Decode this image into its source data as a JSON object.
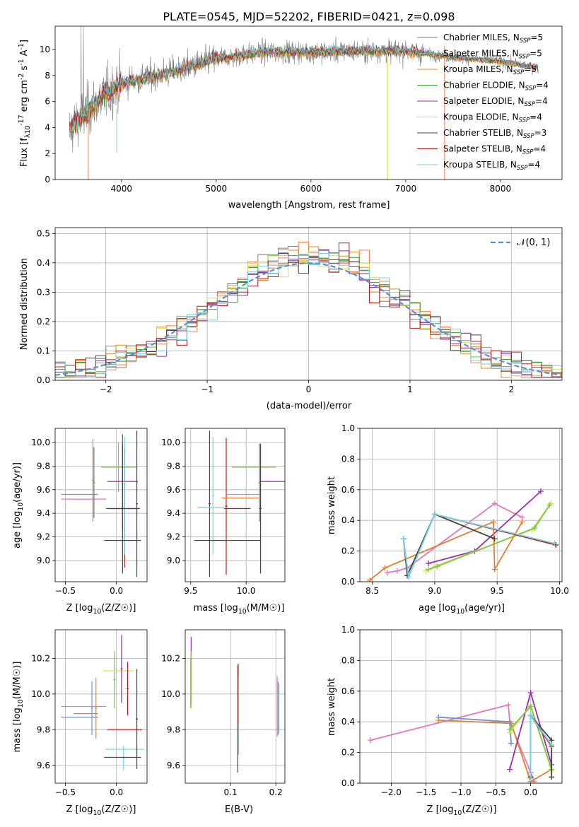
{
  "figure": {
    "title": "PLATE=0545, MJD=52202, FIBERID=0421, z=0.098"
  },
  "colors": {
    "Chabrier MILES": "#7f7f7f",
    "Salpeter MILES": "#ff7f50",
    "Kroupa MILES": "#d98c1a",
    "Chabrier ELODIE": "#2ca02c",
    "Salpeter ELODIE": "#9b2fae",
    "Kroupa ELODIE": "#d4e157",
    "Chabrier STELIB": "#444444",
    "Salpeter STELIB": "#b71c1c",
    "Kroupa STELIB": "#74d2e0",
    "spectrum": "#808080",
    "gaussian": "#5b8dd9",
    "extra_pink": "#e377c2",
    "extra_orange": "#e08030",
    "extra_blue": "#6f8fd8",
    "extra_green": "#7ac943"
  },
  "chart_data": [
    {
      "id": "spectrum",
      "type": "line",
      "title": "PLATE=0545, MJD=52202, FIBERID=0421, z=0.098",
      "xlabel": "wavelength [Angstrom, rest frame]",
      "ylabel": "Flux [f_λ 10^-17 erg cm^-2 s^-1 A^-1]",
      "xlim": [
        3300,
        8650
      ],
      "ylim": [
        0,
        11.8
      ],
      "xticks": [
        4000,
        5000,
        6000,
        7000,
        8000
      ],
      "yticks": [
        0,
        2,
        4,
        6,
        8,
        10
      ],
      "grid": false,
      "legend_position": "right",
      "legend": [
        "Chabrier MILES, N_SSP=5",
        "Salpeter MILES, N_SSP=5",
        "Kroupa MILES, N_SSP=5",
        "Chabrier ELODIE, N_SSP=4",
        "Salpeter ELODIE, N_SSP=4",
        "Kroupa ELODIE, N_SSP=4",
        "Chabrier STELIB, N_SSP=3",
        "Salpeter STELIB, N_SSP=4",
        "Kroupa STELIB, N_SSP=4"
      ],
      "continuum_approx": {
        "x": [
          3450,
          3600,
          3800,
          4000,
          4300,
          4600,
          5000,
          5500,
          6000,
          6500,
          7000,
          7500,
          8000,
          8400
        ],
        "y": [
          3.8,
          5.0,
          6.4,
          7.4,
          7.9,
          8.4,
          9.3,
          9.8,
          9.8,
          9.9,
          9.9,
          9.4,
          9.1,
          8.6
        ]
      }
    },
    {
      "id": "residuals",
      "type": "step",
      "xlabel": "(data-model)/error",
      "ylabel": "Normed distribution",
      "xlim": [
        -2.5,
        2.5
      ],
      "ylim": [
        0,
        0.52
      ],
      "xticks": [
        -2,
        -1,
        0,
        1,
        2
      ],
      "yticks": [
        0.0,
        0.1,
        0.2,
        0.3,
        0.4,
        0.5
      ],
      "grid": true,
      "legend_position": "top-right",
      "legend": [
        "𝒩(0, 1)"
      ]
    },
    {
      "id": "age-vs-Z",
      "type": "errorbar",
      "xlabel": "Z [log10(Z/Z☉)]",
      "ylabel": "age  [log10(age/yr)]",
      "xlim": [
        -0.6,
        0.3
      ],
      "ylim": [
        8.82,
        10.12
      ],
      "xticks": [
        -0.5,
        0.0
      ],
      "yticks": [
        9.0,
        9.2,
        9.4,
        9.6,
        9.8,
        10.0
      ],
      "grid": true,
      "points": [
        {
          "x": -0.36,
          "xerr": 0.18,
          "y": 9.56,
          "yerr": 0.0,
          "c": "extra_blue"
        },
        {
          "x": -0.32,
          "xerr": 0.22,
          "y": 9.52,
          "yerr": 0.0,
          "c": "extra_pink"
        },
        {
          "x": -0.23,
          "xerr": 0.01,
          "y": 9.68,
          "yerr": 0.35,
          "c": "extra_orange"
        },
        {
          "x": -0.22,
          "xerr": 0.01,
          "y": 9.66,
          "yerr": 0.3,
          "c": "Chabrier MILES"
        },
        {
          "x": 0.02,
          "xerr": 0.17,
          "y": 9.79,
          "yerr": 0.21,
          "c": "extra_green"
        },
        {
          "x": 0.06,
          "xerr": 0.15,
          "y": 9.67,
          "yerr": 0.4,
          "c": "Salpeter ELODIE"
        },
        {
          "x": 0.08,
          "xerr": 0.15,
          "y": 9.44,
          "yerr": 0.5,
          "c": "Salpeter STELIB"
        },
        {
          "x": 0.08,
          "xerr": 0.01,
          "y": 9.55,
          "yerr": 0.5,
          "c": "Kroupa STELIB"
        },
        {
          "x": 0.06,
          "xerr": 0.16,
          "y": 9.44,
          "yerr": 0.55,
          "c": "Chabrier STELIB"
        },
        {
          "x": 0.06,
          "xerr": 0.18,
          "y": 9.17,
          "yerr": 0.0,
          "c": "Chabrier STELIB"
        },
        {
          "x": 0.2,
          "xerr": 0.01,
          "y": 9.48,
          "yerr": 0.62,
          "c": "Chabrier STELIB"
        }
      ]
    },
    {
      "id": "age-vs-mass",
      "type": "errorbar",
      "xlabel": "mass [log10(M/M☉)]",
      "ylabel": "",
      "xlim": [
        9.45,
        10.35
      ],
      "ylim": [
        8.82,
        10.12
      ],
      "xticks": [
        9.5,
        10.0
      ],
      "yticks": [
        9.0,
        9.2,
        9.4,
        9.6,
        9.8,
        10.0
      ],
      "grid": true,
      "points": [
        {
          "x": 9.67,
          "xerr": 0.01,
          "y": 9.48,
          "yerr": 0.62,
          "c": "Chabrier STELIB"
        },
        {
          "x": 9.7,
          "xerr": 0.01,
          "y": 9.55,
          "yerr": 0.5,
          "c": "Kroupa STELIB"
        },
        {
          "x": 9.82,
          "xerr": 0.01,
          "y": 9.46,
          "yerr": 0.58,
          "c": "Salpeter STELIB"
        },
        {
          "x": 9.68,
          "xerr": 0.12,
          "y": 9.45,
          "yerr": 0.0,
          "c": "Kroupa STELIB"
        },
        {
          "x": 9.83,
          "xerr": 0.3,
          "y": 9.17,
          "yerr": 0.0,
          "c": "Chabrier STELIB"
        },
        {
          "x": 9.92,
          "xerr": 0.12,
          "y": 9.44,
          "yerr": 0.0,
          "c": "Salpeter STELIB"
        },
        {
          "x": 9.97,
          "xerr": 0.15,
          "y": 9.56,
          "yerr": 0.0,
          "c": "extra_pink"
        },
        {
          "x": 9.95,
          "xerr": 0.17,
          "y": 9.53,
          "yerr": 0.0,
          "c": "extra_orange"
        },
        {
          "x": 10.12,
          "xerr": 0.01,
          "y": 9.66,
          "yerr": 0.33,
          "c": "Chabrier MILES"
        },
        {
          "x": 10.07,
          "xerr": 0.2,
          "y": 9.79,
          "yerr": 0.0,
          "c": "extra_green"
        },
        {
          "x": 10.25,
          "xerr": 0.12,
          "y": 9.67,
          "yerr": 0.0,
          "c": "Salpeter ELODIE"
        },
        {
          "x": 10.13,
          "xerr": 0.01,
          "y": 9.44,
          "yerr": 0.55,
          "c": "Chabrier STELIB"
        }
      ]
    },
    {
      "id": "weight-vs-age",
      "type": "line",
      "xlabel": "age  [log10(age/yr)]",
      "ylabel": "mass weight",
      "xlim": [
        8.4,
        10.02
      ],
      "ylim": [
        0.0,
        1.0
      ],
      "xticks": [
        8.5,
        9.0,
        9.5,
        10.0
      ],
      "yticks": [
        0.0,
        0.2,
        0.4,
        0.6,
        0.8,
        1.0
      ],
      "grid": true,
      "series": [
        {
          "c": "extra_pink",
          "x": [
            8.62,
            8.7,
            8.78,
            9.48,
            9.7
          ],
          "y": [
            0.06,
            0.07,
            0.09,
            0.51,
            0.42
          ]
        },
        {
          "c": "Salpeter ELODIE",
          "x": [
            8.95,
            9.32,
            9.85
          ],
          "y": [
            0.12,
            0.2,
            0.59
          ]
        },
        {
          "c": "Kroupa ELODIE",
          "x": [
            8.93,
            9.0,
            9.78,
            9.93
          ],
          "y": [
            0.07,
            0.1,
            0.34,
            0.51
          ]
        },
        {
          "c": "extra_green",
          "x": [
            8.95,
            9.02,
            9.8,
            9.92
          ],
          "y": [
            0.08,
            0.1,
            0.35,
            0.5
          ]
        },
        {
          "c": "extra_orange",
          "x": [
            8.48,
            8.6,
            9.47,
            9.48,
            9.7
          ],
          "y": [
            0.01,
            0.09,
            0.39,
            0.08,
            0.39
          ]
        },
        {
          "c": "Chabrier STELIB",
          "x": [
            8.75,
            8.78,
            9.0,
            9.48
          ],
          "y": [
            0.28,
            0.04,
            0.44,
            0.28
          ]
        },
        {
          "c": "Salpeter STELIB",
          "x": [
            9.0,
            9.97
          ],
          "y": [
            0.44,
            0.24
          ]
        },
        {
          "c": "Kroupa STELIB",
          "x": [
            8.75,
            8.79,
            9.0,
            9.96
          ],
          "y": [
            0.28,
            0.03,
            0.44,
            0.25
          ]
        }
      ]
    },
    {
      "id": "mass-vs-Z",
      "type": "errorbar",
      "xlabel": "Z [log10(Z/Z☉)]",
      "ylabel": "mass [log10(M/M☉)]",
      "xlim": [
        -0.6,
        0.3
      ],
      "ylim": [
        9.5,
        10.36
      ],
      "xticks": [
        -0.5,
        0.0
      ],
      "yticks": [
        9.6,
        9.8,
        10.0,
        10.2
      ],
      "grid": true,
      "points": [
        {
          "x": -0.36,
          "xerr": 0.18,
          "y": 9.87,
          "yerr": 0.0,
          "c": "extra_blue"
        },
        {
          "x": -0.24,
          "xerr": 0.01,
          "y": 9.92,
          "yerr": 0.15,
          "c": "extra_blue"
        },
        {
          "x": -0.32,
          "xerr": 0.22,
          "y": 9.93,
          "yerr": 0.0,
          "c": "extra_pink"
        },
        {
          "x": -0.3,
          "xerr": 0.12,
          "y": 9.89,
          "yerr": 0.0,
          "c": "extra_orange"
        },
        {
          "x": -0.2,
          "xerr": 0.01,
          "y": 9.92,
          "yerr": 0.17,
          "c": "extra_orange"
        },
        {
          "x": -0.02,
          "xerr": 0.01,
          "y": 10.08,
          "yerr": 0.16,
          "c": "extra_green"
        },
        {
          "x": 0.02,
          "xerr": 0.15,
          "y": 10.13,
          "yerr": 0.0,
          "c": "Kroupa ELODIE"
        },
        {
          "x": 0.05,
          "xerr": 0.01,
          "y": 10.14,
          "yerr": 0.19,
          "c": "Salpeter ELODIE"
        },
        {
          "x": 0.08,
          "xerr": 0.17,
          "y": 9.8,
          "yerr": 0.0,
          "c": "Salpeter STELIB"
        },
        {
          "x": 0.11,
          "xerr": 0.01,
          "y": 10.03,
          "yerr": 0.15,
          "c": "Salpeter STELIB"
        },
        {
          "x": 0.08,
          "xerr": 0.19,
          "y": 9.69,
          "yerr": 0.0,
          "c": "Kroupa STELIB"
        },
        {
          "x": 0.07,
          "xerr": 0.01,
          "y": 9.64,
          "yerr": 0.07,
          "c": "Kroupa STELIB"
        },
        {
          "x": 0.06,
          "xerr": 0.18,
          "y": 9.645,
          "yerr": 0.0,
          "c": "Chabrier STELIB"
        },
        {
          "x": 0.2,
          "xerr": 0.01,
          "y": 9.86,
          "yerr": 0.28,
          "c": "Chabrier STELIB"
        }
      ]
    },
    {
      "id": "mass-vs-EBV",
      "type": "errorbar",
      "xlabel": "E(B-V)",
      "ylabel": "",
      "xlim": [
        0.0,
        0.22
      ],
      "ylim": [
        9.5,
        10.36
      ],
      "xticks": [
        0.1,
        0.2
      ],
      "yticks": [
        9.6,
        9.8,
        10.0,
        10.2
      ],
      "grid": true,
      "points": [
        {
          "x": 0.013,
          "xerr": 0.0,
          "y": 10.13,
          "yerr": 0.19,
          "c": "Salpeter ELODIE"
        },
        {
          "x": 0.014,
          "xerr": 0.0,
          "y": 10.08,
          "yerr": 0.16,
          "c": "Kroupa ELODIE"
        },
        {
          "x": 0.012,
          "xerr": 0.0,
          "y": 10.06,
          "yerr": 0.14,
          "c": "extra_green"
        },
        {
          "x": 0.116,
          "xerr": 0.0,
          "y": 9.86,
          "yerr": 0.3,
          "c": "Chabrier STELIB"
        },
        {
          "x": 0.117,
          "xerr": 0.0,
          "y": 10.0,
          "yerr": 0.17,
          "c": "Salpeter STELIB"
        },
        {
          "x": 0.118,
          "xerr": 0.0,
          "y": 9.88,
          "yerr": 0.22,
          "c": "Kroupa STELIB"
        },
        {
          "x": 0.203,
          "xerr": 0.0,
          "y": 9.93,
          "yerr": 0.17,
          "c": "extra_pink"
        },
        {
          "x": 0.205,
          "xerr": 0.0,
          "y": 9.92,
          "yerr": 0.15,
          "c": "extra_orange"
        },
        {
          "x": 0.207,
          "xerr": 0.0,
          "y": 9.92,
          "yerr": 0.14,
          "c": "Kroupa STELIB"
        }
      ]
    },
    {
      "id": "weight-vs-Z",
      "type": "line",
      "xlabel": "Z [log10(Z/Z☉)]",
      "ylabel": "mass weight",
      "xlim": [
        -2.45,
        0.45
      ],
      "ylim": [
        0.0,
        1.0
      ],
      "xticks": [
        -2.0,
        -1.5,
        -1.0,
        -0.5,
        0.0
      ],
      "yticks": [
        0.0,
        0.2,
        0.4,
        0.6,
        0.8,
        1.0
      ],
      "grid": true,
      "series": [
        {
          "c": "extra_pink",
          "x": [
            -2.3,
            -0.32,
            -0.3,
            0.0,
            0.05
          ],
          "y": [
            0.28,
            0.51,
            0.4,
            0.07,
            0.01
          ]
        },
        {
          "c": "extra_blue",
          "x": [
            -1.32,
            -0.3,
            -0.28
          ],
          "y": [
            0.43,
            0.4,
            0.26
          ]
        },
        {
          "c": "extra_orange",
          "x": [
            -1.32,
            -0.28,
            0.0,
            0.3
          ],
          "y": [
            0.41,
            0.39,
            0.01,
            0.09
          ]
        },
        {
          "c": "Salpeter ELODIE",
          "x": [
            -0.3,
            0.0,
            0.3
          ],
          "y": [
            0.09,
            0.59,
            0.12
          ]
        },
        {
          "c": "Kroupa ELODIE",
          "x": [
            -0.3,
            0.0,
            0.3
          ],
          "y": [
            0.33,
            0.51,
            0.08
          ]
        },
        {
          "c": "extra_green",
          "x": [
            -0.3,
            0.0,
            0.3
          ],
          "y": [
            0.35,
            0.5,
            0.09
          ]
        },
        {
          "c": "Chabrier STELIB",
          "x": [
            0.0,
            0.0,
            0.3,
            0.3
          ],
          "y": [
            0.04,
            0.44,
            0.28,
            0.04
          ]
        },
        {
          "c": "Salpeter STELIB",
          "x": [
            0.0,
            0.3
          ],
          "y": [
            0.44,
            0.24
          ]
        },
        {
          "c": "Kroupa STELIB",
          "x": [
            0.0,
            0.0,
            0.3
          ],
          "y": [
            0.03,
            0.44,
            0.25
          ]
        }
      ]
    }
  ]
}
